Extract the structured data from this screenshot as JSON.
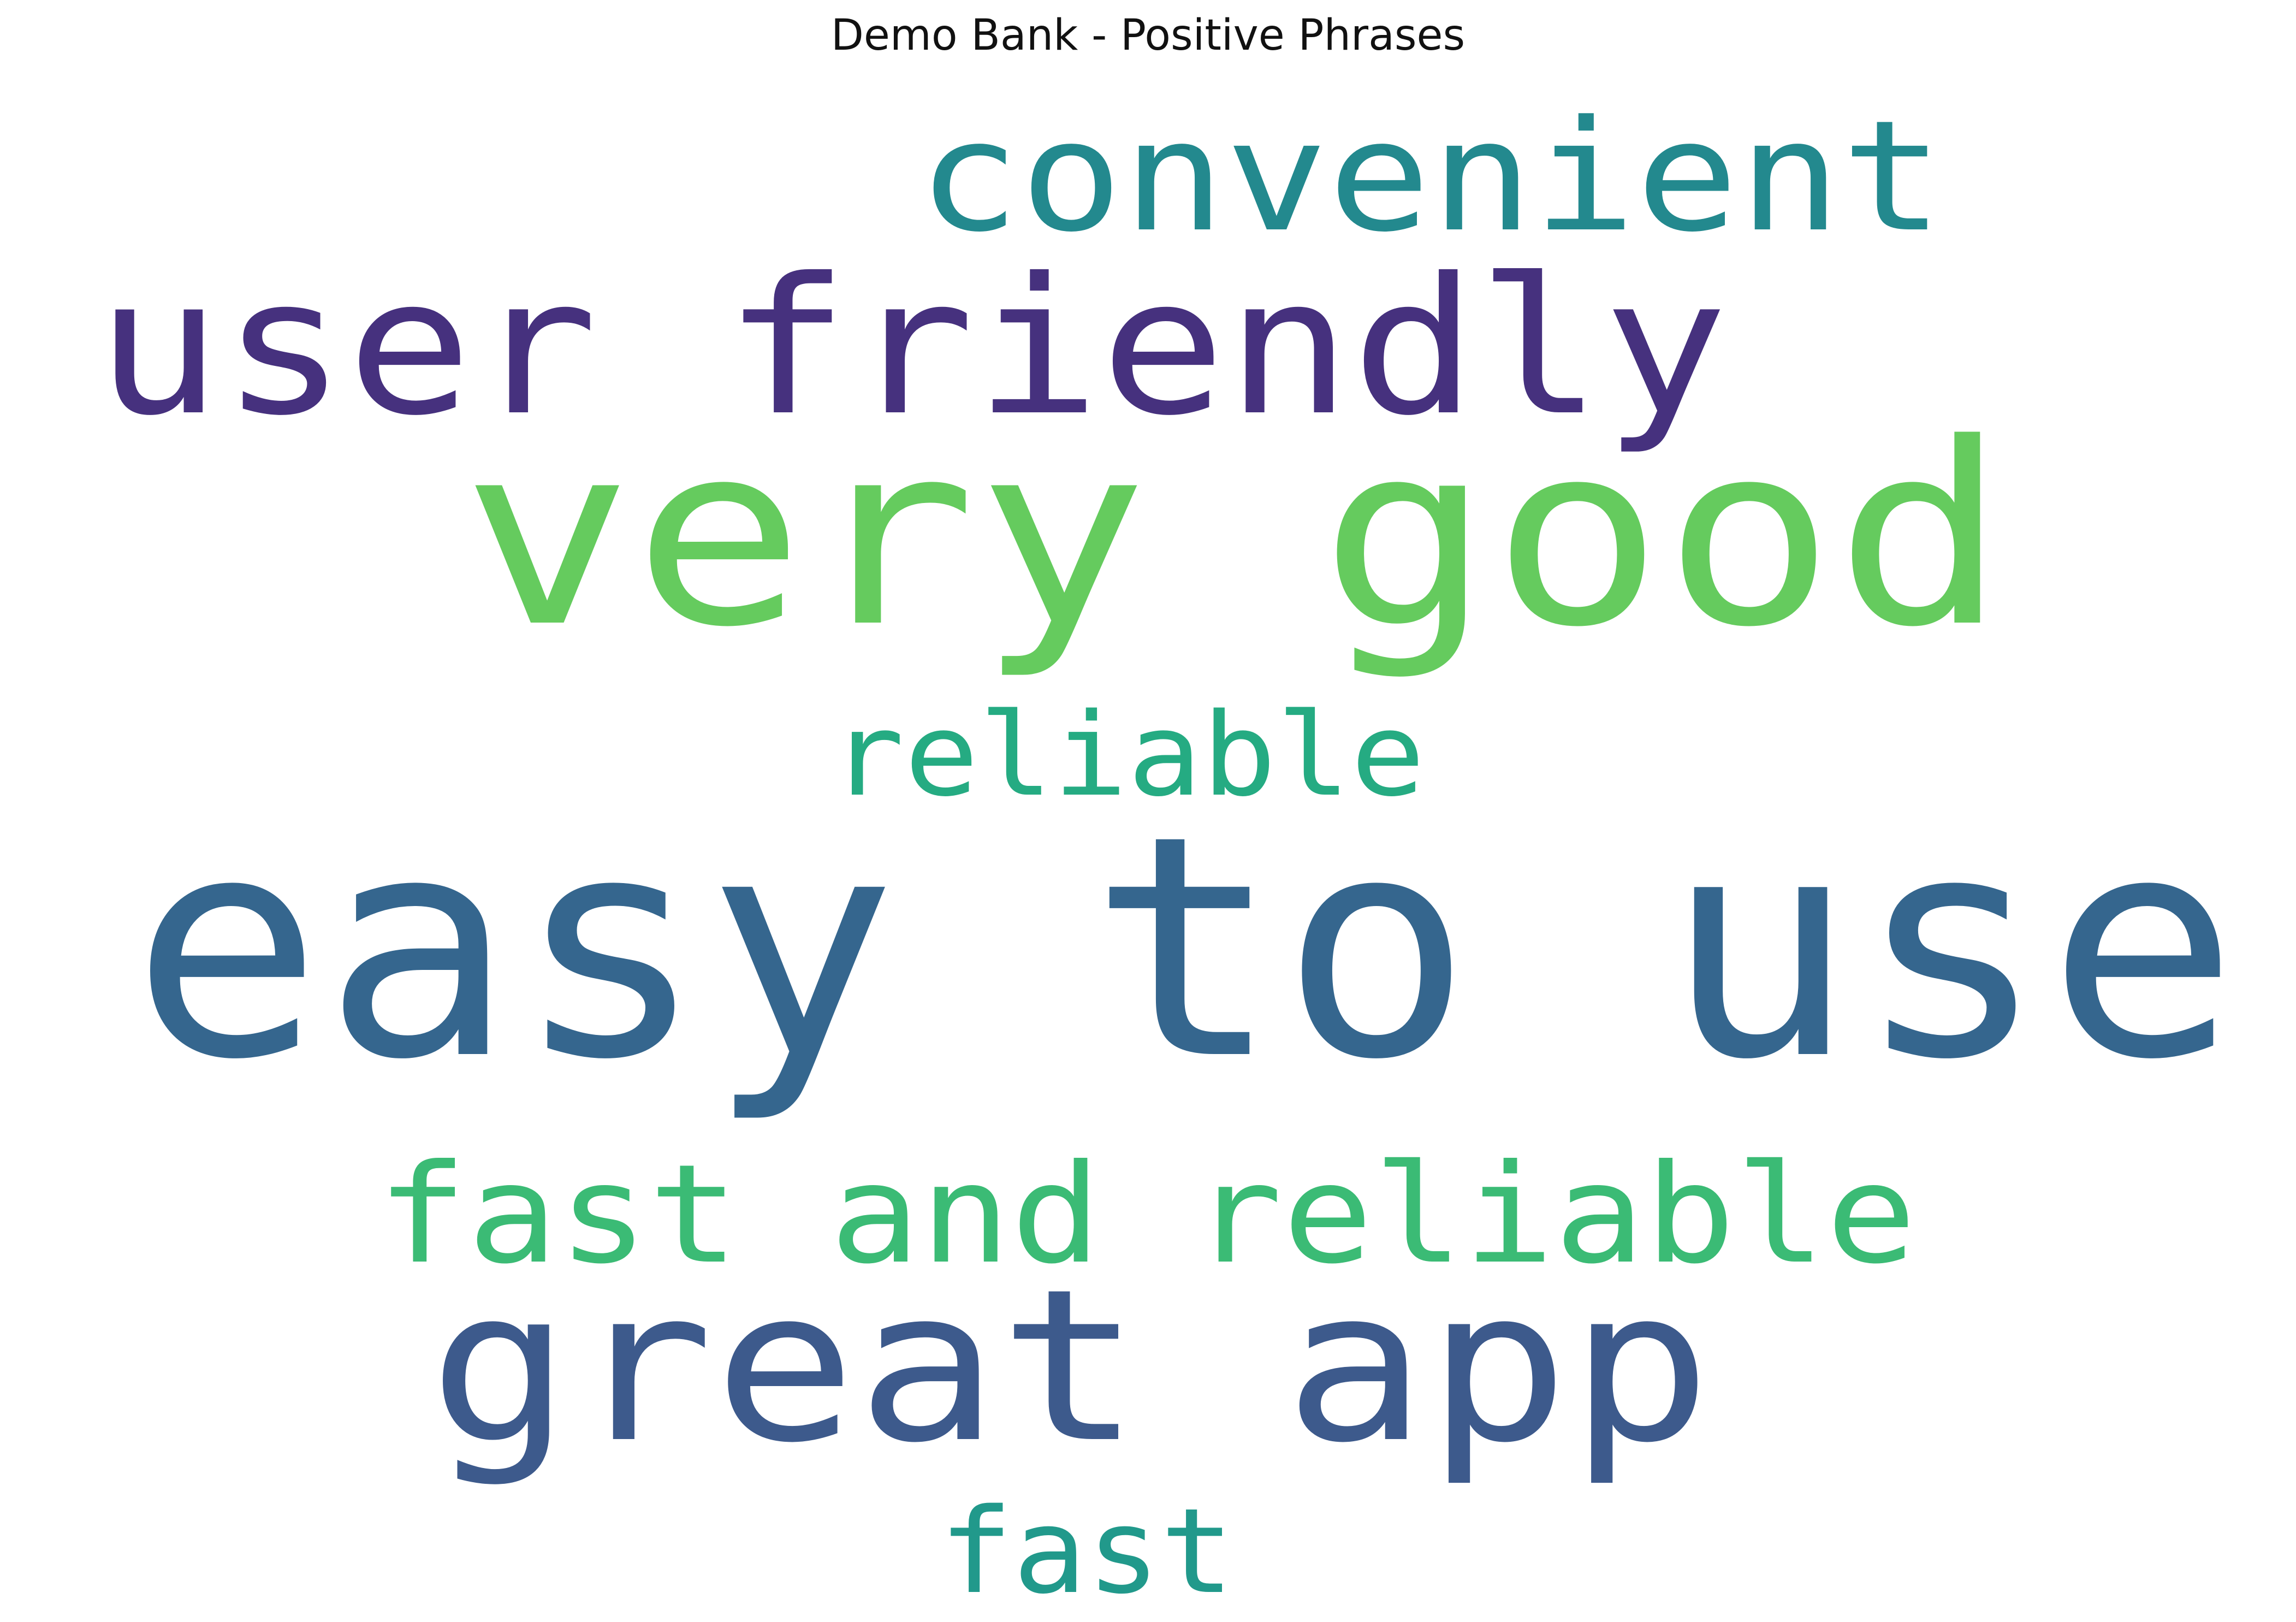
{
  "chart_data": {
    "type": "wordcloud",
    "title": "Demo Bank - Positive Phrases",
    "words": [
      {
        "text": "easy to use",
        "color": "#35668e"
      },
      {
        "text": "very good",
        "color": "#65cb5e"
      },
      {
        "text": "user friendly",
        "color": "#46317e"
      },
      {
        "text": "great app",
        "color": "#3d5a8c"
      },
      {
        "text": "convenient",
        "color": "#23898e"
      },
      {
        "text": "fast and reliable",
        "color": "#3bbb75"
      },
      {
        "text": "reliable",
        "color": "#25ab82"
      },
      {
        "text": "fast",
        "color": "#21998b"
      }
    ]
  }
}
